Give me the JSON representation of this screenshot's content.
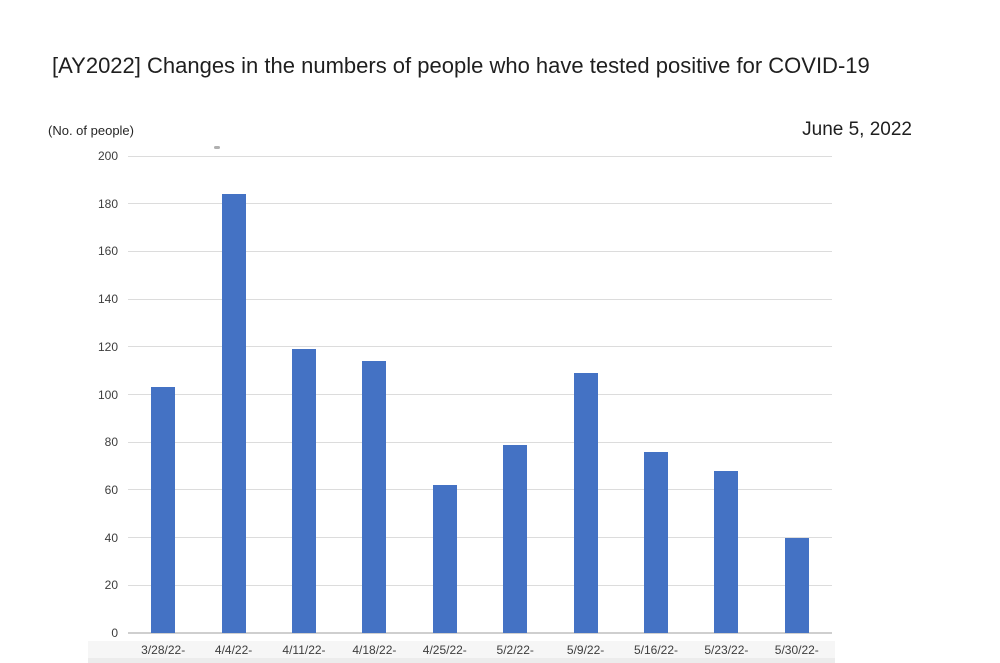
{
  "chart_data": {
    "type": "bar",
    "title": "[AY2022] Changes in the numbers of people who have tested positive for COVID-19",
    "annotation": "June 5, 2022",
    "ylabel": "(No. of people)",
    "xlabel": "",
    "categories": [
      "3/28/22-",
      "4/4/22-",
      "4/11/22-",
      "4/18/22-",
      "4/25/22-",
      "5/2/22-",
      "5/9/22-",
      "5/16/22-",
      "5/23/22-",
      "5/30/22-"
    ],
    "values": [
      103,
      184,
      119,
      114,
      62,
      79,
      109,
      76,
      68,
      40
    ],
    "ylim": [
      0,
      200
    ],
    "ytick_step": 20,
    "yticks": [
      0,
      20,
      40,
      60,
      80,
      100,
      120,
      140,
      160,
      180,
      200
    ],
    "grid": true,
    "legend": false,
    "bar_color": "#4472C4",
    "gridline_color": "#dcdcdc",
    "axis_line_color": "#cfcfcf",
    "tick_text_color": "#3d3d3d"
  }
}
